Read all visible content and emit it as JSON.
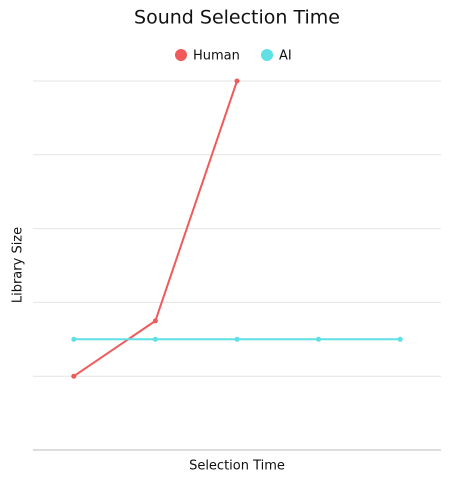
{
  "chart_data": {
    "type": "line",
    "title": "Sound Selection Time",
    "x_label": "Selection Time",
    "y_label": "Library Size",
    "categories": [
      null,
      null,
      null,
      null,
      null
    ],
    "series": [
      {
        "name": "Human",
        "color": "#f05a5a",
        "values": [
          1,
          1.75,
          5,
          null,
          null
        ]
      },
      {
        "name": "AI",
        "color": "#5ee0e4",
        "values": [
          1.5,
          1.5,
          1.5,
          1.5,
          1.5
        ]
      }
    ],
    "ylim": [
      0,
      5
    ],
    "yticks": [
      0,
      1,
      2,
      3,
      4,
      5
    ],
    "grid": true,
    "legend": "top"
  }
}
